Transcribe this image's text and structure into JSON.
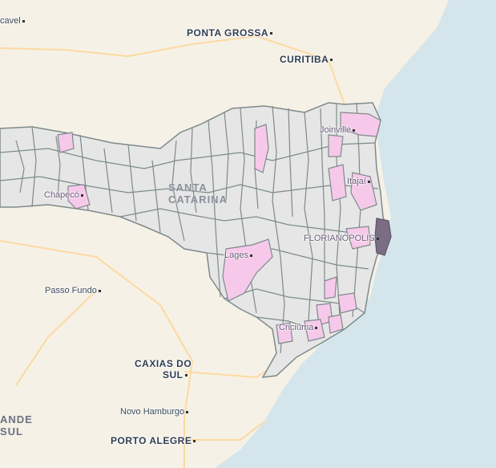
{
  "map": {
    "region": "Santa Catarina",
    "colors": {
      "ocean": "#d4e6ec",
      "land": "#f6f1e6",
      "municipality_fill": "#e6e6e6",
      "municipality_border": "#7e8a8a",
      "highlight_fill": "#f6c9ea",
      "dark_fill": "#7b6e84",
      "road": "#fcd9a0"
    },
    "labels": {
      "cascavel": "cavel",
      "ponta_grossa": "PONTA GROSSA",
      "curitiba": "CURITIBA",
      "joinville": "Joinville",
      "itajai": "Itajaí",
      "chapeco": "Chapecó",
      "state": "SANTA CATARINA",
      "florianopolis": "FLORIANÓPOLIS",
      "lages": "Lages",
      "passo_fundo": "Passo Fundo",
      "criciuma": "Criciúma",
      "caxias_line1": "CAXIAS DO",
      "caxias_line2": "SUL",
      "novo_hamburgo": "Novo Hamburgo",
      "porto_alegre": "PORTO ALEGRE",
      "rio_grande_line1": "ANDE",
      "rio_grande_line2": "SUL"
    }
  }
}
